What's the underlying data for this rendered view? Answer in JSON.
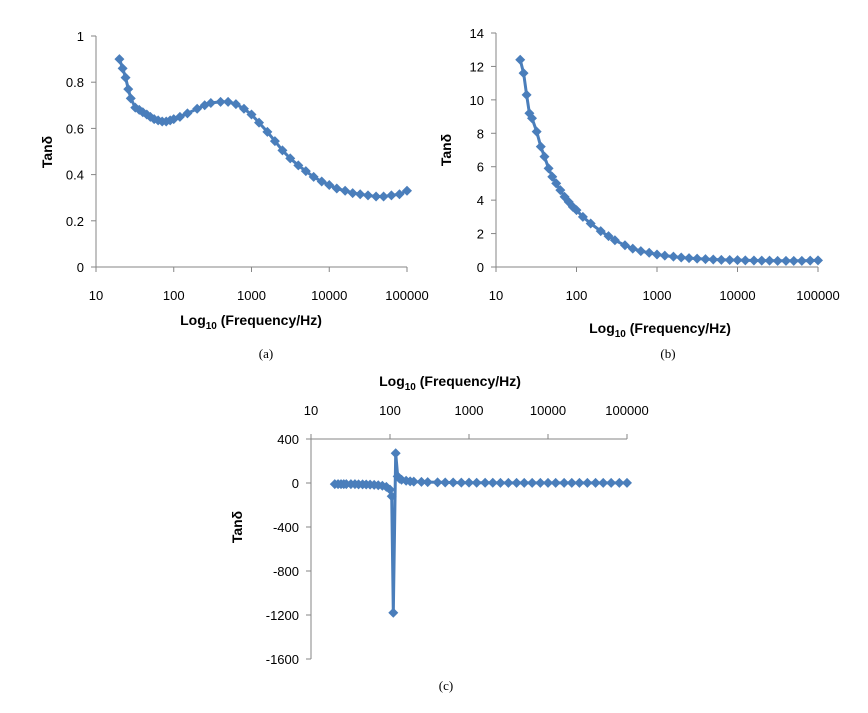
{
  "colors": {
    "series": "#4a7ebb",
    "axis": "#868686"
  },
  "chart_data": [
    {
      "id": "a",
      "panel_label": "(a)",
      "type": "line",
      "marker": "diamond",
      "title": "",
      "xlabel": "Log",
      "xlabel_sub": "10",
      "xlabel_rest": " (Frequency/Hz)",
      "ylabel": "Tanδ",
      "xscale": "log",
      "xlim": [
        10,
        100000
      ],
      "ylim": [
        0,
        1
      ],
      "xticks": [
        10,
        100,
        1000,
        10000,
        100000
      ],
      "xtick_labels": [
        "10",
        "100",
        "1000",
        "10000",
        "100000"
      ],
      "yticks": [
        0,
        0.2,
        0.4,
        0.6,
        0.8,
        1
      ],
      "ytick_labels": [
        "0",
        "0.2",
        "0.4",
        "0.6",
        "0.8",
        "1"
      ],
      "x_axis_position": "bottom",
      "grid": false,
      "series": [
        {
          "x": [
            20,
            22,
            24,
            26,
            28,
            32,
            36,
            40,
            45,
            50,
            56,
            63,
            71,
            80,
            90,
            100,
            120,
            150,
            200,
            250,
            300,
            400,
            500,
            630,
            800,
            1000,
            1250,
            1600,
            2000,
            2500,
            3150,
            4000,
            5000,
            6300,
            8000,
            10000,
            12500,
            16000,
            20000,
            25000,
            31500,
            40000,
            50000,
            63000,
            80000,
            100000
          ],
          "y": [
            0.9,
            0.86,
            0.82,
            0.77,
            0.73,
            0.69,
            0.68,
            0.67,
            0.66,
            0.65,
            0.64,
            0.635,
            0.63,
            0.63,
            0.635,
            0.64,
            0.65,
            0.665,
            0.685,
            0.7,
            0.71,
            0.715,
            0.715,
            0.705,
            0.685,
            0.66,
            0.625,
            0.585,
            0.545,
            0.505,
            0.47,
            0.44,
            0.415,
            0.39,
            0.37,
            0.355,
            0.34,
            0.33,
            0.32,
            0.315,
            0.31,
            0.305,
            0.305,
            0.31,
            0.315,
            0.33
          ]
        }
      ]
    },
    {
      "id": "b",
      "panel_label": "(b)",
      "type": "line",
      "marker": "diamond",
      "title": "",
      "xlabel": "Log",
      "xlabel_sub": "10",
      "xlabel_rest": " (Frequency/Hz)",
      "ylabel": "Tanδ",
      "xscale": "log",
      "xlim": [
        10,
        100000
      ],
      "ylim": [
        0,
        14
      ],
      "xticks": [
        10,
        100,
        1000,
        10000,
        100000
      ],
      "xtick_labels": [
        "10",
        "100",
        "1000",
        "10000",
        "100000"
      ],
      "yticks": [
        0,
        2,
        4,
        6,
        8,
        10,
        12,
        14
      ],
      "ytick_labels": [
        "0",
        "2",
        "4",
        "6",
        "8",
        "10",
        "12",
        "14"
      ],
      "x_axis_position": "bottom",
      "grid": false,
      "series": [
        {
          "x": [
            20,
            22,
            24,
            26,
            28,
            32,
            36,
            40,
            45,
            50,
            56,
            63,
            71,
            80,
            90,
            100,
            120,
            150,
            200,
            250,
            300,
            400,
            500,
            630,
            800,
            1000,
            1250,
            1600,
            2000,
            2500,
            3150,
            4000,
            5000,
            6300,
            8000,
            10000,
            12500,
            16000,
            20000,
            25000,
            31500,
            40000,
            50000,
            63000,
            80000,
            100000
          ],
          "y": [
            12.4,
            11.6,
            10.3,
            9.2,
            8.9,
            8.1,
            7.2,
            6.6,
            5.9,
            5.4,
            5.0,
            4.6,
            4.2,
            3.9,
            3.6,
            3.4,
            3.0,
            2.6,
            2.15,
            1.85,
            1.6,
            1.3,
            1.1,
            0.95,
            0.85,
            0.75,
            0.68,
            0.62,
            0.57,
            0.53,
            0.5,
            0.47,
            0.45,
            0.43,
            0.42,
            0.41,
            0.4,
            0.39,
            0.38,
            0.38,
            0.37,
            0.37,
            0.37,
            0.37,
            0.38,
            0.4
          ]
        }
      ]
    },
    {
      "id": "c",
      "panel_label": "(c)",
      "type": "line",
      "marker": "diamond",
      "title": "",
      "xlabel": "Log",
      "xlabel_sub": "10",
      "xlabel_rest": " (Frequency/Hz)",
      "ylabel": "Tanδ",
      "xscale": "log",
      "xlim": [
        10,
        100000
      ],
      "ylim": [
        -1600,
        400
      ],
      "xticks": [
        10,
        100,
        1000,
        10000,
        100000
      ],
      "xtick_labels": [
        "10",
        "100",
        "1000",
        "10000",
        "100000"
      ],
      "yticks": [
        -1600,
        -1200,
        -800,
        -400,
        0,
        400
      ],
      "ytick_labels": [
        "-1600",
        "-1200",
        "-800",
        "-400",
        "0",
        "400"
      ],
      "x_axis_position": "top",
      "grid": false,
      "series": [
        {
          "x": [
            20,
            22,
            24,
            26,
            28,
            32,
            36,
            40,
            45,
            50,
            56,
            63,
            71,
            80,
            90,
            100,
            105,
            110,
            118,
            125,
            132,
            140,
            160,
            180,
            200,
            250,
            300,
            400,
            500,
            630,
            800,
            1000,
            1250,
            1600,
            2000,
            2500,
            3150,
            4000,
            5000,
            6300,
            8000,
            10000,
            12500,
            16000,
            20000,
            25000,
            31500,
            40000,
            50000,
            63000,
            80000,
            100000
          ],
          "y": [
            -10,
            -10,
            -10,
            -10,
            -10,
            -10,
            -10,
            -12,
            -12,
            -14,
            -15,
            -17,
            -20,
            -25,
            -35,
            -60,
            -120,
            -1180,
            270,
            60,
            40,
            30,
            20,
            15,
            12,
            10,
            8,
            6,
            5,
            4,
            3,
            3,
            2,
            2,
            2,
            1,
            1,
            1,
            1,
            1,
            1,
            1,
            1,
            1,
            1,
            1,
            1,
            1,
            1,
            1,
            1,
            1
          ]
        }
      ]
    }
  ]
}
